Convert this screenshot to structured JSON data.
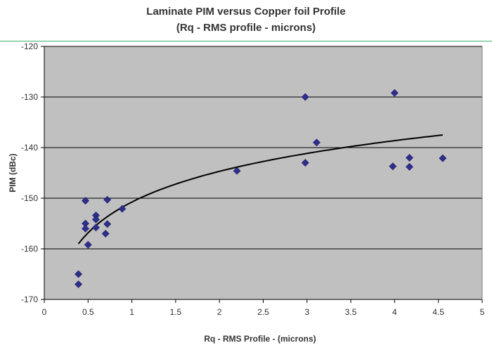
{
  "chart_data": {
    "type": "scatter",
    "title": "Laminate PIM versus Copper foil Profile",
    "subtitle": "(Rq - RMS profile - microns)",
    "xlabel": "Rq - RMS Profile -  (microns)",
    "ylabel": "PIM (dBc)",
    "xlim": [
      0,
      5
    ],
    "ylim": [
      -170,
      -120
    ],
    "x_ticks": [
      "0",
      "0.5",
      "1",
      "1.5",
      "2",
      "2.5",
      "3",
      "3.5",
      "4",
      "4.5",
      "5"
    ],
    "y_ticks": [
      "-120",
      "-130",
      "-140",
      "-150",
      "-160",
      "-170"
    ],
    "grid": "horizontal",
    "legend": "none",
    "points": [
      {
        "x": 0.39,
        "y": -165.0
      },
      {
        "x": 0.39,
        "y": -167.0
      },
      {
        "x": 0.47,
        "y": -150.5
      },
      {
        "x": 0.47,
        "y": -155.0
      },
      {
        "x": 0.47,
        "y": -156.0
      },
      {
        "x": 0.5,
        "y": -159.2
      },
      {
        "x": 0.59,
        "y": -153.4
      },
      {
        "x": 0.59,
        "y": -154.2
      },
      {
        "x": 0.59,
        "y": -155.8
      },
      {
        "x": 0.7,
        "y": -157.0
      },
      {
        "x": 0.72,
        "y": -150.3
      },
      {
        "x": 0.72,
        "y": -155.1
      },
      {
        "x": 0.89,
        "y": -152.1
      },
      {
        "x": 2.2,
        "y": -144.6
      },
      {
        "x": 2.98,
        "y": -130.0
      },
      {
        "x": 2.98,
        "y": -143.0
      },
      {
        "x": 3.11,
        "y": -139.0
      },
      {
        "x": 3.98,
        "y": -143.7
      },
      {
        "x": 4.0,
        "y": -129.2
      },
      {
        "x": 4.17,
        "y": -142.0
      },
      {
        "x": 4.17,
        "y": -143.8
      },
      {
        "x": 4.55,
        "y": -142.1
      }
    ],
    "trendline": {
      "type": "logarithmic",
      "x_range": [
        0.39,
        4.55
      ],
      "y_at_start": -159.0,
      "y_at_end": -137.5
    },
    "colors": {
      "marker": "#2e2e8c",
      "plot_bg": "#c0c0c0",
      "trendline": "#000000",
      "gridline": "#000000",
      "rule": "#3fae6a"
    }
  }
}
